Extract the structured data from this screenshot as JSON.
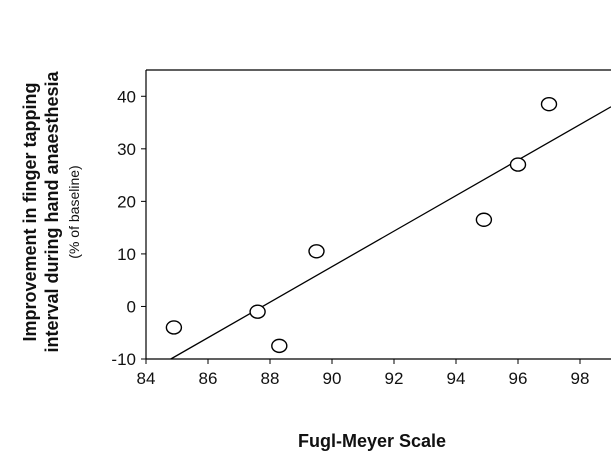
{
  "chart_data": {
    "type": "scatter",
    "xlabel": "Fugl-Meyer Scale",
    "ylabel_lines": [
      "Improvement in finger tapping",
      "interval during hand anaesthesia"
    ],
    "ylabel_sub": "(% of baseline)",
    "xlim": [
      84,
      99
    ],
    "ylim": [
      -10,
      45
    ],
    "xticks": [
      84,
      86,
      88,
      90,
      92,
      94,
      96,
      98
    ],
    "yticks": [
      -10,
      0,
      10,
      20,
      30,
      40
    ],
    "points": [
      {
        "x": 84.9,
        "y": -4
      },
      {
        "x": 87.6,
        "y": -1
      },
      {
        "x": 88.3,
        "y": -7.5
      },
      {
        "x": 89.5,
        "y": 10.5
      },
      {
        "x": 94.9,
        "y": 16.5
      },
      {
        "x": 96.0,
        "y": 27
      },
      {
        "x": 97.0,
        "y": 38.5
      }
    ],
    "fit_line": {
      "x1": 84.8,
      "y1": -10,
      "x2": 99,
      "y2": 38
    }
  }
}
